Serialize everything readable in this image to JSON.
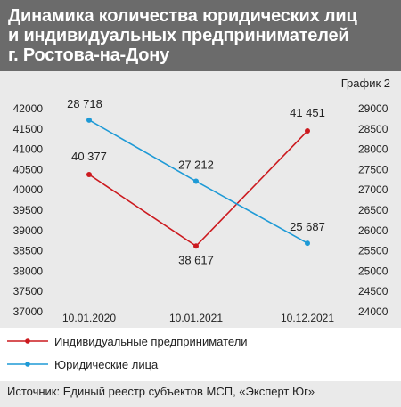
{
  "header": {
    "title": "Динамика количества юридических лиц\nи индивидуальных предпринимателей\nг. Ростова-на-Дону"
  },
  "chart_label": "График 2",
  "source": "Источник: Единый реестр субъектов МСП, «Эксперт Юг»",
  "colors": {
    "ip": "#cc1a1f",
    "ul": "#1e9ad6",
    "header_bg": "#6b6b6b"
  },
  "chart_data": {
    "type": "line",
    "categories": [
      "10.01.2020",
      "10.01.2021",
      "10.12.2021"
    ],
    "y_left": {
      "min": 37000,
      "max": 42000,
      "step": 500,
      "ticks": [
        "42000",
        "41500",
        "41000",
        "40500",
        "40000",
        "39500",
        "39000",
        "38500",
        "38000",
        "37500",
        "37000"
      ]
    },
    "y_right": {
      "min": 24000,
      "max": 29000,
      "step": 500,
      "ticks": [
        "29000",
        "28500",
        "28000",
        "27500",
        "27000",
        "26500",
        "26000",
        "25500",
        "25000",
        "24500",
        "24000"
      ]
    },
    "grid": false,
    "legend_position": "bottom",
    "series": [
      {
        "name": "Индивидуальные предприниматели",
        "axis": "left",
        "values": [
          40377,
          38617,
          41451
        ],
        "labels": [
          "40 377",
          "38 617",
          "41 451"
        ]
      },
      {
        "name": "Юридические лица",
        "axis": "right",
        "values": [
          28718,
          27212,
          25687
        ],
        "labels": [
          "28 718",
          "27 212",
          "25 687"
        ]
      }
    ]
  }
}
